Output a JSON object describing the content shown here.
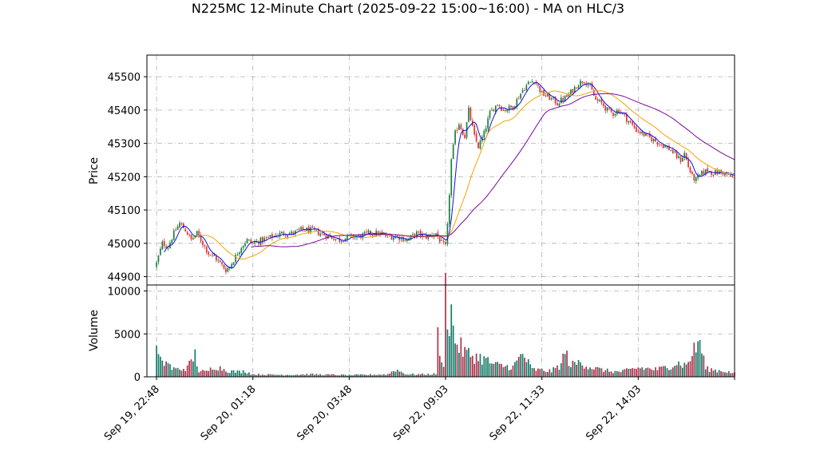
{
  "chart_data": {
    "type": "candlestick",
    "title": "N225MC 12-Minute Chart (2025-09-22 15:00~16:00) - MA on HLC/3",
    "price_panel": {
      "ylabel": "Price",
      "ylim": [
        44875,
        45565
      ],
      "yticks": [
        44900,
        45000,
        45100,
        45200,
        45300,
        45400,
        45500
      ],
      "grid": true
    },
    "volume_panel": {
      "ylabel": "Volume",
      "ylim": [
        0,
        10700
      ],
      "yticks": [
        0,
        5000,
        10000
      ],
      "grid": true
    },
    "x_range": [
      -5,
      300
    ],
    "x_ticks": [
      {
        "i": 0,
        "label": "Sep 19, 22:48"
      },
      {
        "i": 50,
        "label": "Sep 20, 01:18"
      },
      {
        "i": 100,
        "label": "Sep 20, 03:48"
      },
      {
        "i": 150,
        "label": "Sep 22, 09:03"
      },
      {
        "i": 200,
        "label": "Sep 22, 11:33"
      },
      {
        "i": 250,
        "label": "Sep 22, 14:03"
      },
      {
        "i": 300,
        "label": ""
      }
    ],
    "colors": {
      "up": "#1b7f3b",
      "down": "#e0302b",
      "vol_up": "#177a6a",
      "vol_down": "#a8334b",
      "ma_fast": "#1010e0",
      "ma_mid": "#f5a300",
      "ma_slow": "#7a0a9a",
      "grid": "#b0b0b0"
    },
    "close_anchors": [
      [
        0,
        44940
      ],
      [
        3,
        45000
      ],
      [
        6,
        44990
      ],
      [
        9,
        45030
      ],
      [
        12,
        45060
      ],
      [
        15,
        45040
      ],
      [
        18,
        45010
      ],
      [
        21,
        45030
      ],
      [
        24,
        45000
      ],
      [
        27,
        44970
      ],
      [
        30,
        44960
      ],
      [
        33,
        44940
      ],
      [
        36,
        44920
      ],
      [
        38,
        44930
      ],
      [
        41,
        44960
      ],
      [
        44,
        44990
      ],
      [
        47,
        45010
      ],
      [
        50,
        45000
      ],
      [
        55,
        45010
      ],
      [
        60,
        45020
      ],
      [
        65,
        45030
      ],
      [
        70,
        45030
      ],
      [
        75,
        45040
      ],
      [
        80,
        45040
      ],
      [
        85,
        45030
      ],
      [
        90,
        45020
      ],
      [
        95,
        45010
      ],
      [
        100,
        45020
      ],
      [
        105,
        45020
      ],
      [
        110,
        45030
      ],
      [
        115,
        45030
      ],
      [
        120,
        45020
      ],
      [
        125,
        45020
      ],
      [
        130,
        45010
      ],
      [
        135,
        45030
      ],
      [
        140,
        45020
      ],
      [
        145,
        45030
      ],
      [
        148,
        45000
      ],
      [
        150,
        44990
      ],
      [
        151,
        45050
      ],
      [
        152,
        45150
      ],
      [
        153,
        45250
      ],
      [
        155,
        45330
      ],
      [
        157,
        45360
      ],
      [
        160,
        45320
      ],
      [
        162,
        45400
      ],
      [
        165,
        45320
      ],
      [
        167,
        45290
      ],
      [
        170,
        45330
      ],
      [
        173,
        45390
      ],
      [
        177,
        45420
      ],
      [
        180,
        45400
      ],
      [
        185,
        45410
      ],
      [
        188,
        45440
      ],
      [
        190,
        45460
      ],
      [
        193,
        45480
      ],
      [
        196,
        45490
      ],
      [
        198,
        45470
      ],
      [
        200,
        45450
      ],
      [
        203,
        45440
      ],
      [
        206,
        45430
      ],
      [
        208,
        45420
      ],
      [
        210,
        45430
      ],
      [
        213,
        45440
      ],
      [
        216,
        45460
      ],
      [
        219,
        45480
      ],
      [
        222,
        45490
      ],
      [
        225,
        45470
      ],
      [
        228,
        45430
      ],
      [
        231,
        45420
      ],
      [
        234,
        45400
      ],
      [
        237,
        45390
      ],
      [
        240,
        45400
      ],
      [
        243,
        45380
      ],
      [
        246,
        45360
      ],
      [
        249,
        45340
      ],
      [
        252,
        45330
      ],
      [
        255,
        45320
      ],
      [
        258,
        45310
      ],
      [
        261,
        45300
      ],
      [
        264,
        45290
      ],
      [
        267,
        45280
      ],
      [
        270,
        45260
      ],
      [
        272,
        45250
      ],
      [
        274,
        45270
      ],
      [
        276,
        45230
      ],
      [
        278,
        45200
      ],
      [
        280,
        45190
      ],
      [
        283,
        45210
      ],
      [
        286,
        45220
      ],
      [
        289,
        45210
      ],
      [
        292,
        45215
      ],
      [
        295,
        45210
      ],
      [
        298,
        45200
      ],
      [
        300,
        45195
      ]
    ],
    "volume_anchors": [
      [
        0,
        3300
      ],
      [
        1,
        2500
      ],
      [
        3,
        1500
      ],
      [
        5,
        2000
      ],
      [
        8,
        1000
      ],
      [
        12,
        900
      ],
      [
        16,
        1100
      ],
      [
        20,
        2700
      ],
      [
        22,
        700
      ],
      [
        26,
        600
      ],
      [
        30,
        1300
      ],
      [
        34,
        1000
      ],
      [
        38,
        700
      ],
      [
        42,
        600
      ],
      [
        46,
        700
      ],
      [
        50,
        300
      ],
      [
        60,
        250
      ],
      [
        70,
        250
      ],
      [
        80,
        300
      ],
      [
        90,
        250
      ],
      [
        100,
        200
      ],
      [
        110,
        250
      ],
      [
        120,
        300
      ],
      [
        124,
        900
      ],
      [
        130,
        300
      ],
      [
        140,
        300
      ],
      [
        145,
        350
      ],
      [
        146,
        6500
      ],
      [
        147,
        2000
      ],
      [
        148,
        1500
      ],
      [
        149,
        1800
      ],
      [
        150,
        10300
      ],
      [
        151,
        8500
      ],
      [
        152,
        7000
      ],
      [
        153,
        8200
      ],
      [
        154,
        5500
      ],
      [
        155,
        4500
      ],
      [
        157,
        3800
      ],
      [
        160,
        3000
      ],
      [
        165,
        2500
      ],
      [
        170,
        2200
      ],
      [
        175,
        1500
      ],
      [
        180,
        1300
      ],
      [
        185,
        1200
      ],
      [
        190,
        2800
      ],
      [
        195,
        900
      ],
      [
        200,
        800
      ],
      [
        205,
        700
      ],
      [
        210,
        1500
      ],
      [
        212,
        3100
      ],
      [
        215,
        1400
      ],
      [
        220,
        1800
      ],
      [
        225,
        1200
      ],
      [
        230,
        900
      ],
      [
        235,
        700
      ],
      [
        240,
        600
      ],
      [
        245,
        800
      ],
      [
        250,
        1100
      ],
      [
        255,
        1000
      ],
      [
        260,
        900
      ],
      [
        265,
        1200
      ],
      [
        270,
        1700
      ],
      [
        275,
        1400
      ],
      [
        278,
        2800
      ],
      [
        282,
        4400
      ],
      [
        285,
        1000
      ],
      [
        290,
        800
      ],
      [
        295,
        700
      ],
      [
        300,
        400
      ]
    ],
    "series": [
      {
        "type": "candles",
        "bars": 301
      },
      {
        "type": "ma",
        "period": 5
      },
      {
        "type": "ma",
        "period": 20
      },
      {
        "type": "ma",
        "period": 50
      }
    ]
  }
}
